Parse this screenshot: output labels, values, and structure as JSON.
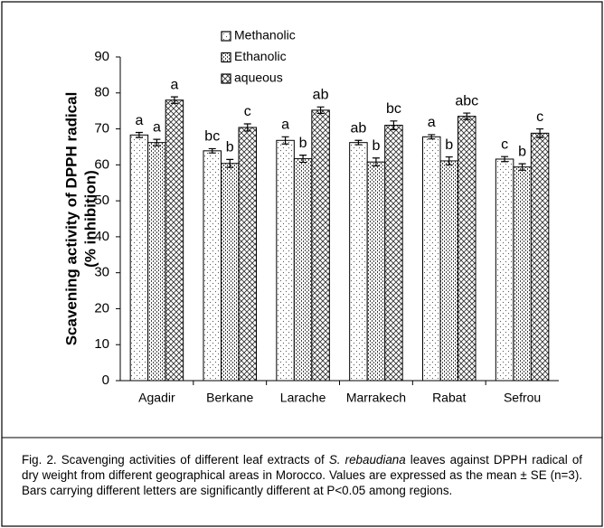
{
  "chart_data": {
    "type": "bar",
    "y_label": [
      "Scavening activity of DPPH radical",
      "(% inhibition)"
    ],
    "categories": [
      "Agadir",
      "Berkane",
      "Larache",
      "Marrakech",
      "Rabat",
      "Sefrou"
    ],
    "series": [
      {
        "name": "Methanolic",
        "color": "#000000",
        "values": [
          68.3,
          63.9,
          66.8,
          66.2,
          67.8,
          61.6
        ],
        "errors": [
          0.7,
          0.6,
          1.0,
          0.6,
          0.6,
          0.7
        ],
        "letters": [
          "a",
          "bc",
          "a",
          "ab",
          "a",
          "c"
        ]
      },
      {
        "name": "Ethanolic",
        "color": "#000000",
        "values": [
          66.2,
          60.4,
          61.7,
          60.8,
          61.1,
          59.4
        ],
        "errors": [
          0.9,
          1.1,
          1.0,
          1.1,
          1.1,
          0.9
        ],
        "letters": [
          "a",
          "b",
          "b",
          "b",
          "b",
          "b"
        ]
      },
      {
        "name": "aqueous",
        "color": "#000000",
        "values": [
          78.0,
          70.4,
          75.2,
          71.0,
          73.5,
          68.8
        ],
        "errors": [
          0.9,
          1.0,
          0.9,
          1.2,
          0.9,
          1.2
        ],
        "letters": [
          "a",
          "c",
          "ab",
          "bc",
          "abc",
          "c"
        ]
      }
    ],
    "ylim": [
      0,
      90
    ],
    "yticks": [
      0,
      10,
      20,
      30,
      40,
      50,
      60,
      70,
      80,
      90
    ],
    "caption": [
      "Fig. 2. Scavenging activities of different leaf extracts of ",
      "S. rebaudiana",
      " leaves against DPPH radical of dry weight from different geographical areas in Morocco. Values are expressed as the mean ± SE (n=3). Bars carrying different letters are significantly different at P<0.05 among regions."
    ]
  }
}
